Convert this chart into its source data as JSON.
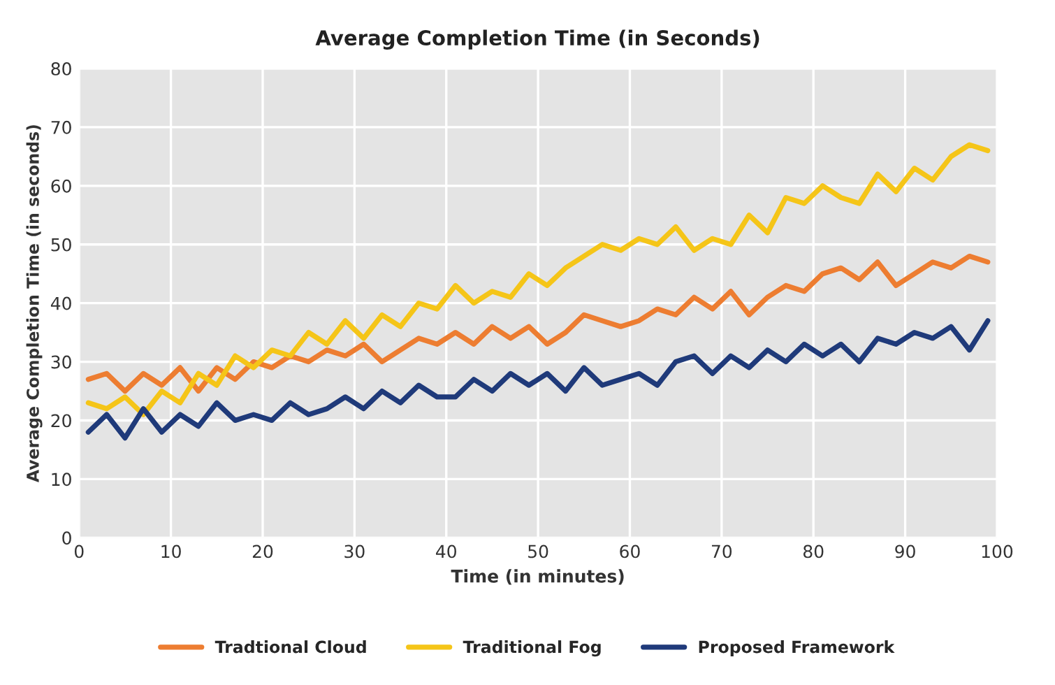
{
  "chart_data": {
    "type": "line",
    "title": "Average Completion Time (in Seconds)",
    "xlabel": "Time (in minutes)",
    "ylabel": "Average Completion Time (in seconds)",
    "x": [
      1,
      3,
      5,
      7,
      9,
      11,
      13,
      15,
      17,
      19,
      21,
      23,
      25,
      27,
      29,
      31,
      33,
      35,
      37,
      39,
      41,
      43,
      45,
      47,
      49,
      51,
      53,
      55,
      57,
      59,
      61,
      63,
      65,
      67,
      69,
      71,
      73,
      75,
      77,
      79,
      81,
      83,
      85,
      87,
      89,
      91,
      93,
      95,
      97,
      99
    ],
    "series": [
      {
        "name": "Tradtional Cloud",
        "color": "#ed7d31",
        "values": [
          27,
          28,
          25,
          28,
          26,
          29,
          25,
          29,
          27,
          30,
          29,
          31,
          30,
          32,
          31,
          33,
          30,
          32,
          34,
          33,
          35,
          33,
          36,
          34,
          36,
          33,
          35,
          38,
          37,
          36,
          37,
          39,
          38,
          41,
          39,
          42,
          38,
          41,
          43,
          42,
          45,
          46,
          44,
          47,
          43,
          45,
          47,
          46,
          48,
          47
        ]
      },
      {
        "name": "Traditional Fog",
        "color": "#f5c518",
        "values": [
          23,
          22,
          24,
          21,
          25,
          23,
          28,
          26,
          31,
          29,
          32,
          31,
          35,
          33,
          37,
          34,
          38,
          36,
          40,
          39,
          43,
          40,
          42,
          41,
          45,
          43,
          46,
          48,
          50,
          49,
          51,
          50,
          53,
          49,
          51,
          50,
          55,
          52,
          58,
          57,
          60,
          58,
          57,
          62,
          59,
          63,
          61,
          65,
          67,
          66
        ]
      },
      {
        "name": "Proposed Framework",
        "color": "#1f3a7a",
        "values": [
          18,
          21,
          17,
          22,
          18,
          21,
          19,
          23,
          20,
          21,
          20,
          23,
          21,
          22,
          24,
          22,
          25,
          23,
          26,
          24,
          24,
          27,
          25,
          28,
          26,
          28,
          25,
          29,
          26,
          27,
          28,
          26,
          30,
          31,
          28,
          31,
          29,
          32,
          30,
          33,
          31,
          33,
          30,
          34,
          33,
          35,
          34,
          36,
          32,
          37
        ]
      }
    ],
    "xlim": [
      0,
      100
    ],
    "xticks": [
      0,
      10,
      20,
      30,
      40,
      50,
      60,
      70,
      80,
      90,
      100
    ],
    "ylim": [
      0,
      80
    ],
    "yticks": [
      0,
      10,
      20,
      30,
      40,
      50,
      60,
      70,
      80
    ],
    "grid": true,
    "legend": "bottom",
    "line_style": "solid"
  }
}
